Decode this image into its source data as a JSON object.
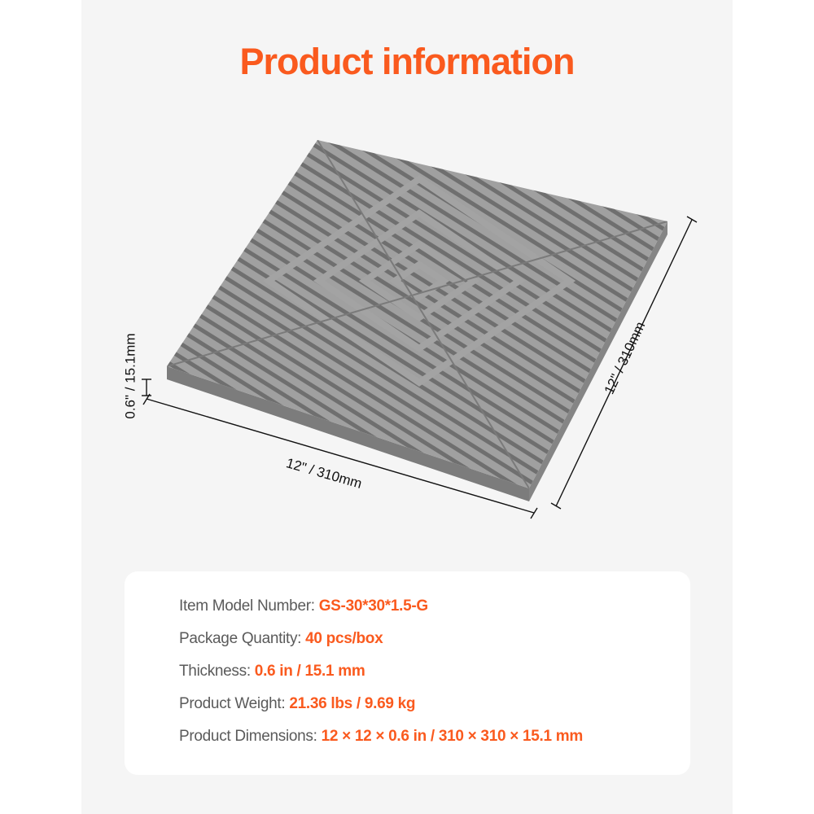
{
  "title": "Product information",
  "colors": {
    "accent": "#fa5a1e",
    "label": "#5a5a5a",
    "panel": "#f5f5f5",
    "tile": "#8f8f8f"
  },
  "image": {
    "subject": "gray interlocking drainage floor tile"
  },
  "dimensions": {
    "length": "12\" / 310mm",
    "width": "12\" / 310mm",
    "thickness": "0.6\" / 15.1mm"
  },
  "specs": [
    {
      "label": "Item Model Number:",
      "value": "GS-30*30*1.5-G"
    },
    {
      "label": "Package Quantity:",
      "value": "40 pcs/box"
    },
    {
      "label": "Thickness:",
      "value": "0.6 in / 15.1 mm"
    },
    {
      "label": "Product Weight:",
      "value": "21.36 lbs / 9.69 kg"
    },
    {
      "label": "Product Dimensions:",
      "value": "12 × 12 × 0.6 in / 310 × 310 × 15.1 mm"
    }
  ]
}
